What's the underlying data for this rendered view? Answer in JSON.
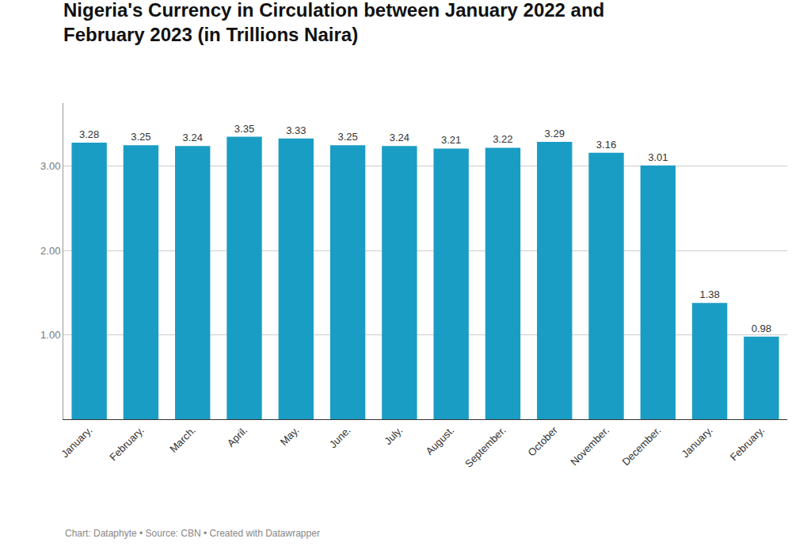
{
  "chart_data": {
    "type": "bar",
    "title": "Nigeria's Currency in Circulation between January 2022 and\nFebruary 2023 (in Trillions Naira)",
    "categories": [
      "January.",
      "February.",
      "March.",
      "April.",
      "May.",
      "June.",
      "July.",
      "August.",
      "September.",
      "October",
      "November.",
      "December.",
      "January.",
      "February."
    ],
    "values": [
      3.28,
      3.25,
      3.24,
      3.35,
      3.33,
      3.25,
      3.24,
      3.21,
      3.22,
      3.29,
      3.16,
      3.01,
      1.38,
      0.98
    ],
    "color": "#1A9DC4",
    "ylim": [
      0,
      3.75
    ],
    "yticks": [
      {
        "value": 1,
        "label": "1.00"
      },
      {
        "value": 2,
        "label": "2.00"
      },
      {
        "value": 3,
        "label": "3.00"
      }
    ],
    "grid": true,
    "data_labels": true,
    "annotations": [
      "Chart: Dataphyte • Source: CBN • Created with Datawrapper"
    ]
  }
}
